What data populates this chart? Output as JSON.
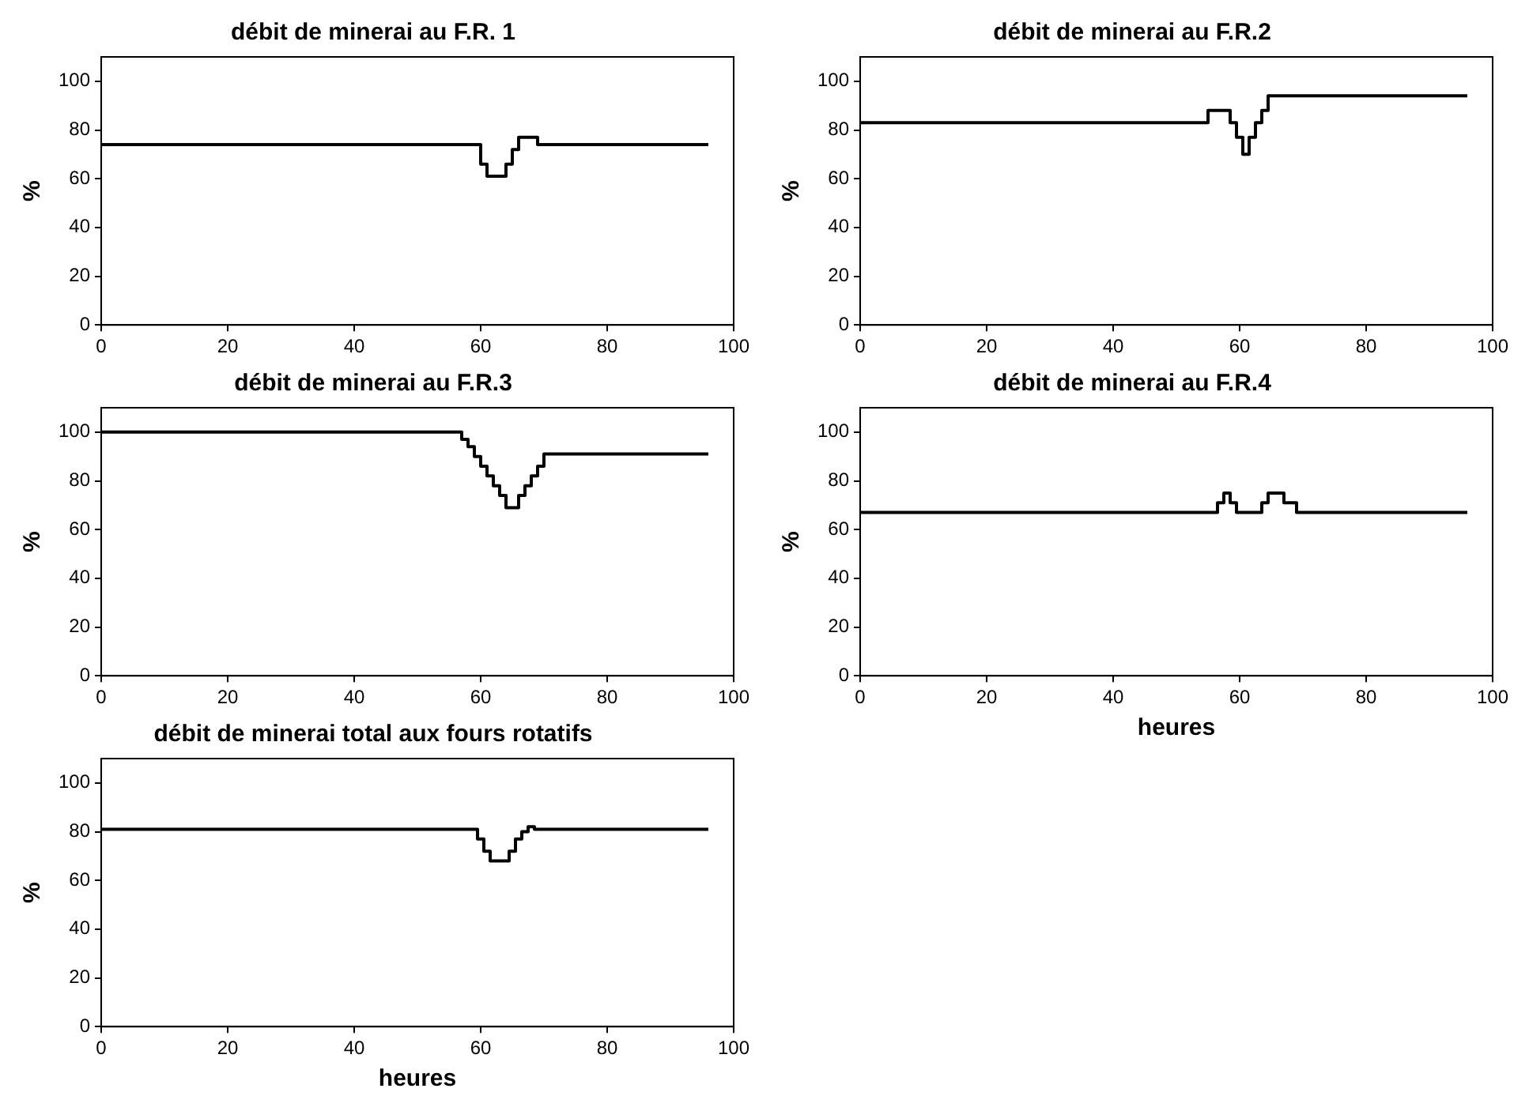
{
  "chart_data": [
    {
      "type": "step",
      "title": "débit de minerai au F.R. 1",
      "ylabel": "%",
      "color": "#000000",
      "xlim": [
        0,
        100
      ],
      "xticks": [
        0,
        20,
        40,
        60,
        80,
        100
      ],
      "ylim": [
        0,
        110
      ],
      "yticks": [
        0,
        20,
        40,
        60,
        80,
        100
      ],
      "grid": false,
      "x": [
        0,
        60,
        61,
        64,
        65,
        66,
        69,
        96
      ],
      "values": [
        74,
        66,
        61,
        66,
        72,
        77,
        74,
        74
      ]
    },
    {
      "type": "step",
      "title": "débit de minerai au F.R.2",
      "ylabel": "%",
      "color": "#000000",
      "xlim": [
        0,
        100
      ],
      "xticks": [
        0,
        20,
        40,
        60,
        80,
        100
      ],
      "ylim": [
        0,
        110
      ],
      "yticks": [
        0,
        20,
        40,
        60,
        80,
        100
      ],
      "grid": false,
      "x": [
        0,
        55,
        58.5,
        59.5,
        60.5,
        61.5,
        62.5,
        63.5,
        64.5,
        96
      ],
      "values": [
        83,
        88,
        83,
        77,
        70,
        77,
        83,
        88,
        94,
        94
      ]
    },
    {
      "type": "step",
      "title": "débit de minerai au F.R.3",
      "ylabel": "%",
      "color": "#000000",
      "xlim": [
        0,
        100
      ],
      "xticks": [
        0,
        20,
        40,
        60,
        80,
        100
      ],
      "ylim": [
        0,
        110
      ],
      "yticks": [
        0,
        20,
        40,
        60,
        80,
        100
      ],
      "grid": false,
      "x": [
        0,
        57,
        58,
        59,
        60,
        61,
        62,
        63,
        64,
        66,
        67,
        68,
        69,
        70,
        96
      ],
      "values": [
        100,
        97,
        94,
        90,
        86,
        82,
        78,
        74,
        69,
        74,
        78,
        82,
        86,
        91,
        91
      ]
    },
    {
      "type": "step",
      "title": "débit de minerai au F.R.4",
      "xlabel": "heures",
      "ylabel": "%",
      "color": "#000000",
      "xlim": [
        0,
        100
      ],
      "xticks": [
        0,
        20,
        40,
        60,
        80,
        100
      ],
      "ylim": [
        0,
        110
      ],
      "yticks": [
        0,
        20,
        40,
        60,
        80,
        100
      ],
      "grid": false,
      "x": [
        0,
        56.5,
        57.5,
        58.5,
        59.5,
        63.5,
        64.5,
        67,
        69,
        96
      ],
      "values": [
        67,
        71,
        75,
        71,
        67,
        71,
        75,
        71,
        67,
        67
      ]
    },
    {
      "type": "step",
      "title": "débit de minerai total aux fours rotatifs",
      "xlabel": "heures",
      "ylabel": "%",
      "color": "#000000",
      "xlim": [
        0,
        100
      ],
      "xticks": [
        0,
        20,
        40,
        60,
        80,
        100
      ],
      "ylim": [
        0,
        110
      ],
      "yticks": [
        0,
        20,
        40,
        60,
        80,
        100
      ],
      "grid": false,
      "x": [
        0,
        59.5,
        60.5,
        61.5,
        64.5,
        65.5,
        66.5,
        67.5,
        68.5,
        96
      ],
      "values": [
        81,
        77,
        72,
        68,
        72,
        77,
        80,
        82,
        81,
        81
      ]
    }
  ]
}
